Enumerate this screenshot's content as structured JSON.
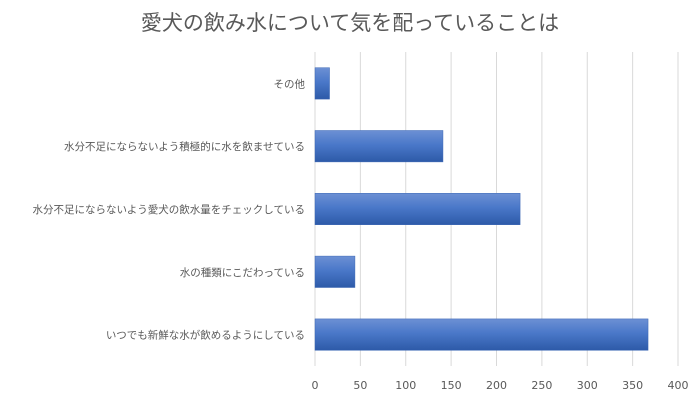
{
  "chart_data": {
    "type": "bar",
    "orientation": "horizontal",
    "title": "愛犬の飲み水について気を配っていることは",
    "categories": [
      "その他",
      "水分不足にならないよう積極的に水を飲ませている",
      "水分不足にならないよう愛犬の飲水量をチェックしている",
      "水の種類にこだわっている",
      "いつでも新鮮な水が飲めるようにしている"
    ],
    "values": [
      16,
      141,
      226,
      44,
      367
    ],
    "xlim": [
      0,
      400
    ],
    "xticks": [
      0,
      50,
      100,
      150,
      200,
      250,
      300,
      350,
      400
    ],
    "grid": true,
    "legend": "none",
    "bar_color": "#4472c4"
  }
}
